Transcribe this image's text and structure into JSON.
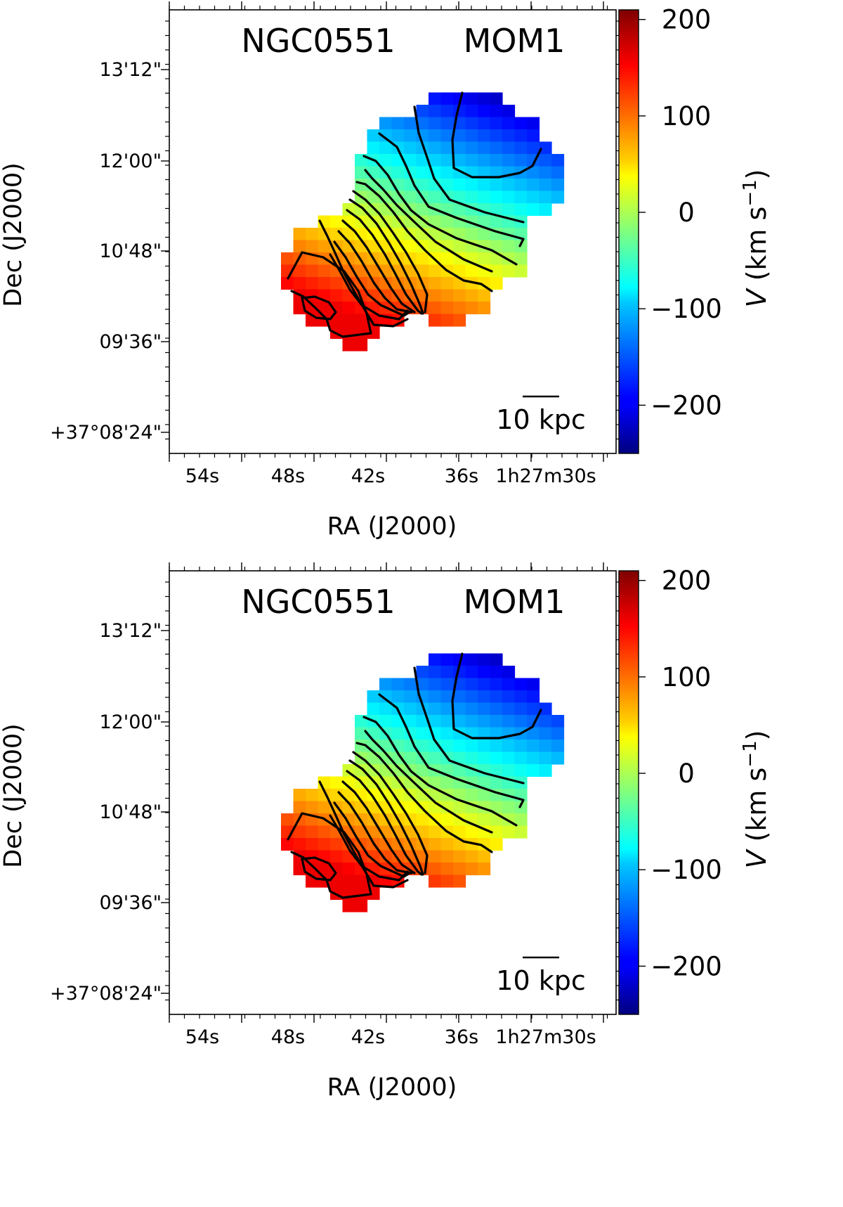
{
  "chart_data": [
    {
      "type": "heatmap",
      "subtype": "moment-1 velocity map with contours",
      "title_left": "NGC0551",
      "title_right": "MOM1",
      "xlabel": "RA (J2000)",
      "ylabel": "Dec (J2000)",
      "x_ticks": [
        "54s",
        "48s",
        "42s",
        "36s",
        "1h27m30s"
      ],
      "y_ticks": [
        "13'12\"",
        "12'00\"",
        "10'48\"",
        "09'36\"",
        "+37°08'24\""
      ],
      "scalebar_label": "10 kpc",
      "colorbar": {
        "label": "V (km s⁻¹)",
        "label_var": "V",
        "label_unit": "(km s",
        "label_exp": "−1",
        "label_close": ")",
        "range": [
          -250,
          210
        ],
        "ticks": [
          "200",
          "100",
          "0",
          "−100",
          "−200"
        ],
        "tick_values": [
          200,
          100,
          0,
          -100,
          -200
        ],
        "colormap": "jet"
      },
      "velocity_range_map": [
        -230,
        160
      ],
      "grid_on": false
    },
    {
      "type": "heatmap",
      "subtype": "moment-1 velocity map with contours",
      "title_left": "NGC0551",
      "title_right": "MOM1",
      "xlabel": "RA (J2000)",
      "ylabel": "Dec (J2000)",
      "x_ticks": [
        "54s",
        "48s",
        "42s",
        "36s",
        "1h27m30s"
      ],
      "y_ticks": [
        "13'12\"",
        "12'00\"",
        "10'48\"",
        "09'36\"",
        "+37°08'24\""
      ],
      "scalebar_label": "10 kpc",
      "colorbar": {
        "label": "V (km s⁻¹)",
        "label_var": "V",
        "label_unit": "(km s",
        "label_exp": "−1",
        "label_close": ")",
        "range": [
          -250,
          210
        ],
        "ticks": [
          "200",
          "100",
          "0",
          "−100",
          "−200"
        ],
        "tick_values": [
          200,
          100,
          0,
          -100,
          -200
        ],
        "colormap": "jet"
      },
      "velocity_range_map": [
        -230,
        160
      ],
      "grid_on": false
    }
  ]
}
